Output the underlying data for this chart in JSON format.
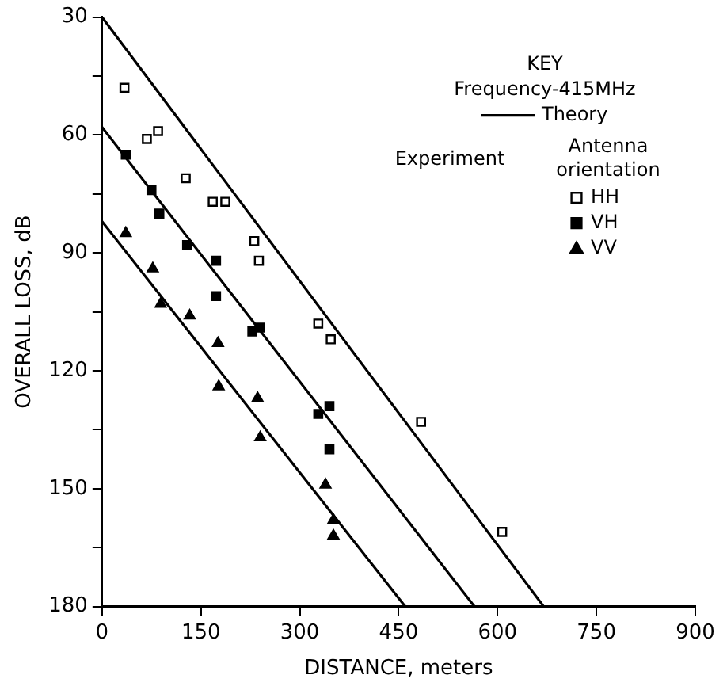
{
  "chart_data": {
    "type": "scatter",
    "xlabel": "DISTANCE, meters",
    "ylabel": "OVERALL LOSS, dB",
    "legend_title": "KEY",
    "annotations": [
      "Frequency-415MHz",
      "Experiment",
      "Antenna orientation"
    ],
    "xlim": [
      0,
      900
    ],
    "xticks": [
      0,
      150,
      300,
      450,
      600,
      750,
      900
    ],
    "ylim": [
      180,
      30
    ],
    "yticks": [
      30,
      {
        "value": 45,
        "label": null
      },
      60,
      {
        "value": 75,
        "label": null
      },
      90,
      {
        "value": 105,
        "label": null
      },
      120,
      {
        "value": 135,
        "label": null
      },
      150,
      {
        "value": 165,
        "label": null
      },
      180
    ],
    "grid": false,
    "legend": "top right",
    "series": [
      {
        "name": "Theory",
        "type": "line",
        "marker": "none",
        "line_style": "solid",
        "color": "#000000",
        "x": [
          0,
          670
        ],
        "values": [
          30,
          180
        ]
      },
      {
        "type": "line",
        "marker": "none",
        "line_style": "solid",
        "color": "#000000",
        "x": [
          0,
          565
        ],
        "values": [
          58,
          180
        ]
      },
      {
        "type": "line",
        "marker": "none",
        "line_style": "solid",
        "color": "#000000",
        "x": [
          0,
          460
        ],
        "values": [
          82,
          180
        ]
      },
      {
        "name": "HH",
        "type": "scatter",
        "marker": "square",
        "color": "#ffffff",
        "x": [
          34,
          68,
          85,
          127,
          168,
          187,
          231,
          238,
          328,
          347,
          484,
          607
        ],
        "values": [
          48,
          61,
          59,
          71,
          77,
          77,
          87,
          92,
          108,
          112,
          133,
          161
        ]
      },
      {
        "name": "VH",
        "type": "scatter",
        "marker": "square",
        "color": "#000000",
        "x": [
          36,
          75,
          87,
          129,
          173,
          173,
          228,
          240,
          328,
          345,
          345
        ],
        "values": [
          65,
          74,
          80,
          88,
          92,
          101,
          110,
          109,
          131,
          129,
          140
        ]
      },
      {
        "name": "VV",
        "type": "scatter",
        "marker": "triangle",
        "color": "#000000",
        "x": [
          36,
          77,
          89,
          133,
          176,
          177,
          236,
          240,
          339,
          351,
          351
        ],
        "values": [
          85,
          94,
          103,
          106,
          113,
          124,
          127,
          137,
          149,
          158,
          162
        ]
      }
    ]
  }
}
